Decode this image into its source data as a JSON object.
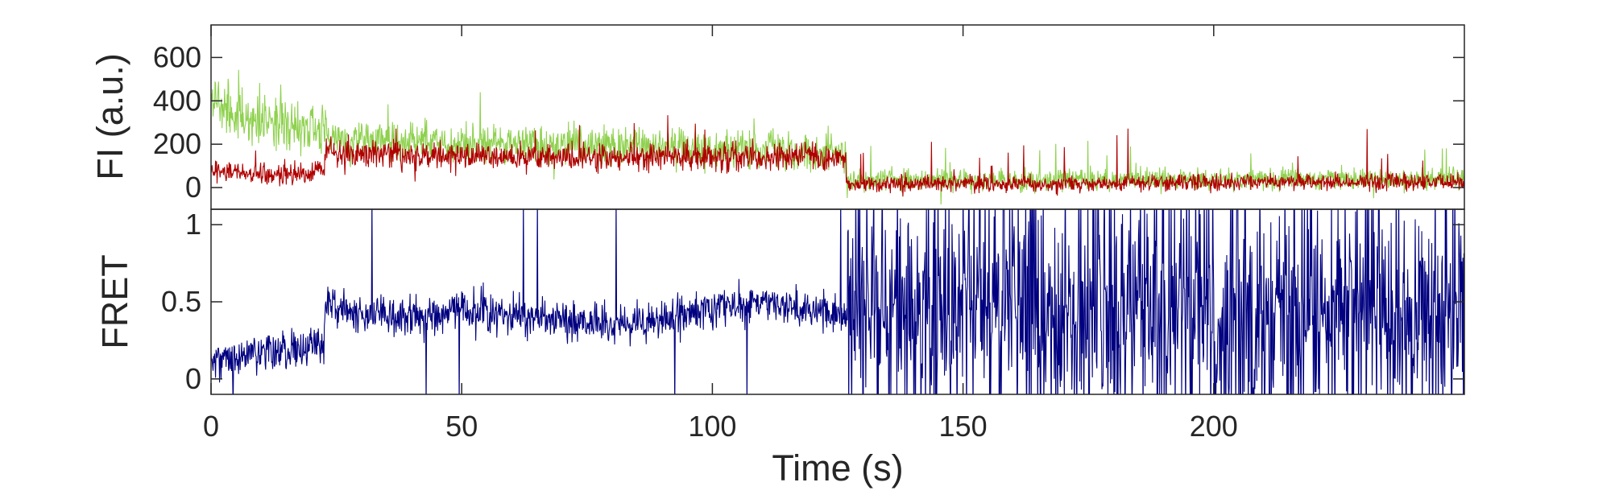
{
  "chart_data": [
    {
      "type": "line",
      "name": "fluorescence-panel",
      "xlabel": "",
      "ylabel": "FI (a.u.)",
      "xlim": [
        0,
        250
      ],
      "ylim": [
        -100,
        750
      ],
      "yticks": [
        0,
        200,
        400,
        600
      ],
      "grid": false,
      "series": [
        {
          "color": "#8fd14f",
          "x": [
            0,
            5,
            10,
            15,
            20,
            22.5,
            23,
            30,
            40,
            50,
            60,
            70,
            80,
            90,
            100,
            110,
            120,
            126.5,
            127,
            140,
            160,
            180,
            200,
            220,
            250
          ],
          "values": [
            420,
            320,
            300,
            290,
            280,
            270,
            230,
            220,
            210,
            200,
            195,
            190,
            185,
            180,
            175,
            170,
            165,
            160,
            40,
            35,
            30,
            35,
            40,
            40,
            35
          ]
        },
        {
          "color": "#b00000",
          "x": [
            0,
            5,
            10,
            15,
            20,
            22.5,
            23,
            30,
            40,
            50,
            60,
            70,
            80,
            90,
            100,
            110,
            120,
            126.5,
            127,
            140,
            160,
            180,
            200,
            220,
            250
          ],
          "values": [
            80,
            70,
            60,
            60,
            70,
            80,
            170,
            160,
            150,
            150,
            140,
            135,
            135,
            140,
            145,
            145,
            140,
            140,
            20,
            15,
            15,
            20,
            25,
            25,
            25
          ]
        }
      ]
    },
    {
      "type": "line",
      "name": "fret-panel",
      "xlabel": "Time (s)",
      "ylabel": "FRET",
      "xlim": [
        0,
        250
      ],
      "ylim": [
        -0.1,
        1.1
      ],
      "xticks": [
        0,
        50,
        100,
        150,
        200
      ],
      "yticks": [
        0,
        0.5,
        1
      ],
      "grid": false,
      "series": [
        {
          "color": "#000080",
          "x": [
            0,
            5,
            10,
            15,
            20,
            22.5,
            23,
            30,
            40,
            50,
            60,
            70,
            80,
            90,
            100,
            110,
            120,
            126.5,
            127,
            150,
            200,
            250
          ],
          "values": [
            0.12,
            0.15,
            0.18,
            0.2,
            0.22,
            0.23,
            0.48,
            0.42,
            0.4,
            0.45,
            0.42,
            0.38,
            0.36,
            0.4,
            0.45,
            0.5,
            0.45,
            0.4,
            0.45,
            0.45,
            0.45,
            0.45
          ],
          "noise": "high variability after 127 s, spanning the full range"
        }
      ]
    }
  ]
}
